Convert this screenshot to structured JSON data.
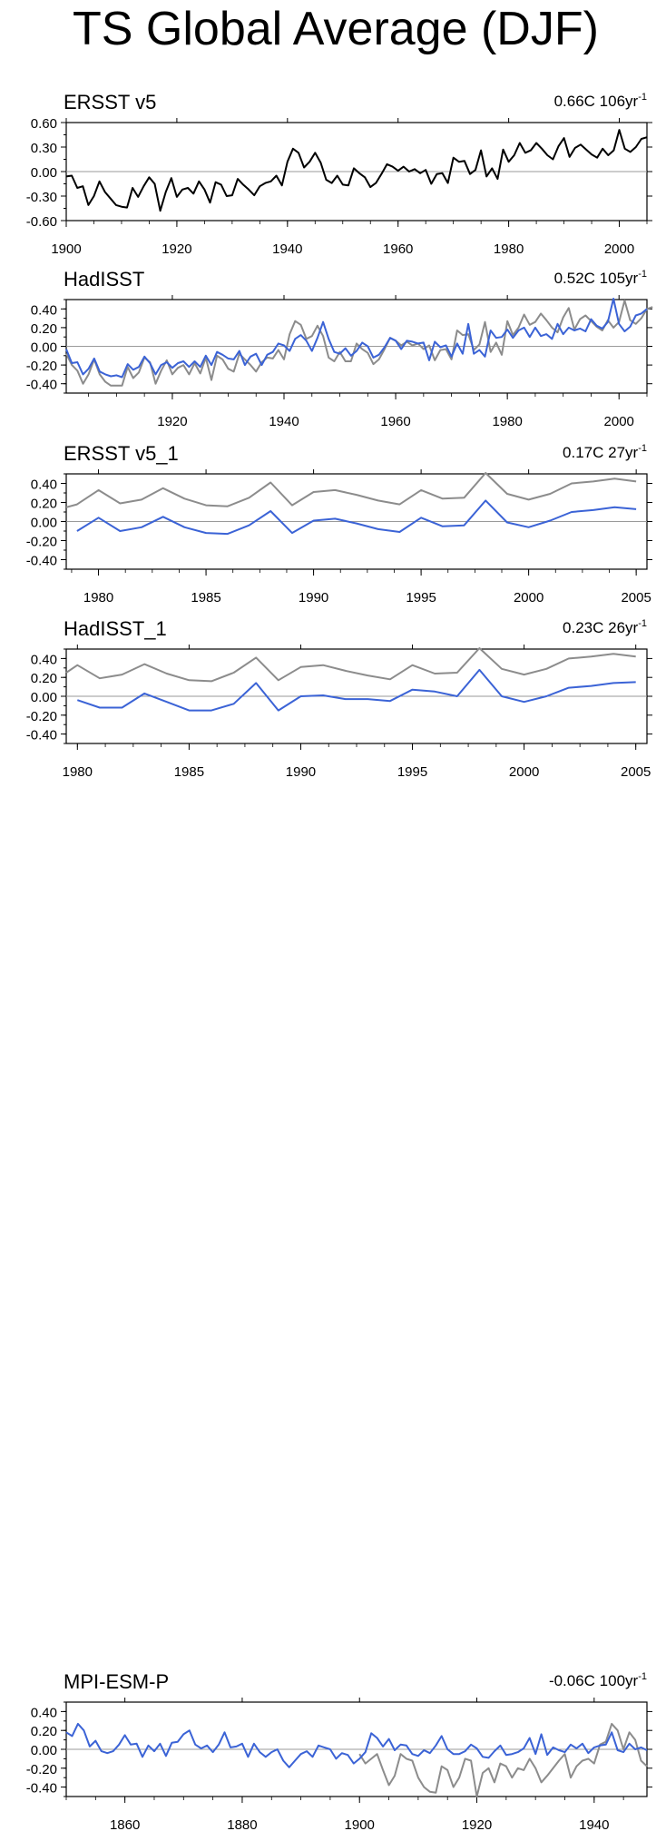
{
  "title": "TS Global Average (DJF)",
  "chart_data": [
    {
      "type": "line",
      "title": "ERSST v5",
      "trend_value": "0.66C 106yr",
      "trend_exp": "-1",
      "x_range": [
        1900,
        2005
      ],
      "ylim": [
        -0.6,
        0.6
      ],
      "y_ticks": [
        -0.6,
        -0.3,
        0.0,
        0.3,
        0.6
      ],
      "y_tick_labels": [
        "-0.60",
        "-0.30",
        "0.00",
        "0.30",
        "0.60"
      ],
      "x_ticks": [
        1900,
        1920,
        1940,
        1960,
        1980,
        2000
      ],
      "x_tick_labels": [
        "1900",
        "1920",
        "1940",
        "1960",
        "1980",
        "2000"
      ],
      "colors": {
        "series1": "#000000"
      },
      "series": [
        {
          "x_start": 1900,
          "values": [
            -0.06,
            -0.05,
            -0.2,
            -0.18,
            -0.41,
            -0.3,
            -0.12,
            -0.25,
            -0.33,
            -0.41,
            -0.43,
            -0.44,
            -0.2,
            -0.31,
            -0.18,
            -0.07,
            -0.15,
            -0.48,
            -0.25,
            -0.08,
            -0.31,
            -0.22,
            -0.2,
            -0.27,
            -0.12,
            -0.22,
            -0.38,
            -0.13,
            -0.16,
            -0.3,
            -0.29,
            -0.09,
            -0.16,
            -0.22,
            -0.29,
            -0.18,
            -0.14,
            -0.12,
            -0.05,
            -0.17,
            0.12,
            0.28,
            0.23,
            0.05,
            0.12,
            0.23,
            0.11,
            -0.1,
            -0.14,
            -0.05,
            -0.16,
            -0.17,
            0.04,
            -0.02,
            -0.07,
            -0.19,
            -0.14,
            -0.03,
            0.09,
            0.06,
            0.01,
            0.06,
            0.0,
            0.03,
            -0.02,
            0.02,
            -0.15,
            -0.03,
            -0.02,
            -0.14,
            0.17,
            0.12,
            0.13,
            -0.03,
            0.02,
            0.26,
            -0.06,
            0.04,
            -0.09,
            0.27,
            0.12,
            0.2,
            0.35,
            0.23,
            0.26,
            0.35,
            0.28,
            0.2,
            0.15,
            0.31,
            0.41,
            0.18,
            0.29,
            0.33,
            0.27,
            0.21,
            0.17,
            0.28,
            0.2,
            0.26,
            0.51,
            0.28,
            0.24,
            0.3,
            0.4,
            0.42
          ]
        }
      ]
    },
    {
      "type": "line",
      "title": "HadISST",
      "trend_value": "0.52C 105yr",
      "trend_exp": "-1",
      "x_range": [
        1901,
        2005
      ],
      "ylim": [
        -0.5,
        0.5
      ],
      "y_ticks": [
        -0.4,
        -0.2,
        0.0,
        0.2,
        0.4
      ],
      "y_tick_labels": [
        "-0.40",
        "-0.20",
        "0.00",
        "0.20",
        "0.40"
      ],
      "x_ticks": [
        1920,
        1940,
        1960,
        1980,
        2000
      ],
      "x_tick_labels": [
        "1920",
        "1940",
        "1960",
        "1980",
        "2000"
      ],
      "colors": {
        "series1": "#3b63d6",
        "series2": "#8c8c8c"
      },
      "series": [
        {
          "x_start": 1901,
          "values": [
            -0.03,
            -0.18,
            -0.17,
            -0.3,
            -0.24,
            -0.13,
            -0.27,
            -0.3,
            -0.32,
            -0.31,
            -0.33,
            -0.19,
            -0.25,
            -0.22,
            -0.11,
            -0.18,
            -0.3,
            -0.2,
            -0.17,
            -0.23,
            -0.18,
            -0.16,
            -0.22,
            -0.16,
            -0.22,
            -0.1,
            -0.2,
            -0.06,
            -0.09,
            -0.13,
            -0.14,
            -0.05,
            -0.2,
            -0.11,
            -0.08,
            -0.2,
            -0.09,
            -0.06,
            0.03,
            0.01,
            -0.05,
            0.08,
            0.12,
            0.06,
            -0.05,
            0.09,
            0.26,
            0.08,
            -0.06,
            -0.08,
            -0.02,
            -0.1,
            -0.05,
            0.04,
            0.0,
            -0.12,
            -0.09,
            -0.01,
            0.09,
            0.06,
            -0.03,
            0.06,
            0.05,
            0.03,
            0.04,
            -0.15,
            0.05,
            -0.01,
            0.01,
            -0.11,
            0.03,
            -0.08,
            0.24,
            -0.08,
            -0.04,
            -0.11,
            0.17,
            0.09,
            0.1,
            0.18,
            0.09,
            0.17,
            0.2,
            0.1,
            0.2,
            0.11,
            0.13,
            0.08,
            0.24,
            0.13,
            0.2,
            0.17,
            0.19,
            0.16,
            0.29,
            0.22,
            0.19,
            0.26,
            0.51,
            0.24,
            0.16,
            0.21,
            0.33,
            0.35,
            0.4
          ]
        },
        {
          "x_start": 1901,
          "values": [
            -0.08,
            -0.2,
            -0.26,
            -0.4,
            -0.3,
            -0.14,
            -0.3,
            -0.38,
            -0.42,
            -0.42,
            -0.42,
            -0.22,
            -0.34,
            -0.28,
            -0.12,
            -0.17,
            -0.4,
            -0.26,
            -0.15,
            -0.3,
            -0.23,
            -0.2,
            -0.3,
            -0.18,
            -0.29,
            -0.12,
            -0.36,
            -0.1,
            -0.14,
            -0.24,
            -0.27,
            -0.08,
            -0.14,
            -0.2,
            -0.27,
            -0.17,
            -0.12,
            -0.13,
            -0.04,
            -0.14,
            0.13,
            0.27,
            0.23,
            0.08,
            0.11,
            0.22,
            0.11,
            -0.12,
            -0.16,
            -0.06,
            -0.16,
            -0.16,
            0.03,
            -0.03,
            -0.07,
            -0.19,
            -0.14,
            -0.03,
            0.09,
            0.06,
            0.01,
            0.05,
            0.01,
            0.03,
            -0.03,
            0.01,
            -0.15,
            -0.04,
            -0.03,
            -0.14,
            0.17,
            0.12,
            0.13,
            -0.04,
            0.02,
            0.26,
            -0.06,
            0.04,
            -0.09,
            0.27,
            0.12,
            0.2,
            0.34,
            0.23,
            0.26,
            0.35,
            0.28,
            0.2,
            0.15,
            0.31,
            0.41,
            0.18,
            0.29,
            0.33,
            0.27,
            0.21,
            0.17,
            0.28,
            0.2,
            0.26,
            0.49,
            0.28,
            0.24,
            0.3,
            0.4,
            0.42
          ]
        }
      ]
    },
    {
      "type": "line",
      "title": "ERSST v5_1",
      "trend_value": "0.17C 27yr",
      "trend_exp": "-1",
      "x_range": [
        1978.5,
        2005.5
      ],
      "ylim": [
        -0.5,
        0.5
      ],
      "y_ticks": [
        -0.4,
        -0.2,
        0.0,
        0.2,
        0.4
      ],
      "y_tick_labels": [
        "-0.40",
        "-0.20",
        "0.00",
        "0.20",
        "0.40"
      ],
      "x_ticks": [
        1980,
        1985,
        1990,
        1995,
        2000,
        2005
      ],
      "x_tick_labels": [
        "1980",
        "1985",
        "1990",
        "1995",
        "2000",
        "2005"
      ],
      "colors": {
        "series1": "#3b63d6",
        "series2": "#8c8c8c"
      },
      "series": [
        {
          "x": [
            1979,
            1980,
            1981,
            1982,
            1983,
            1984,
            1985,
            1986,
            1987,
            1988,
            1989,
            1990,
            1991,
            1992,
            1993,
            1994,
            1995,
            1996,
            1997,
            1998,
            1999,
            2000,
            2001,
            2002,
            2003,
            2004,
            2005
          ],
          "values": [
            -0.1,
            0.04,
            -0.1,
            -0.06,
            0.05,
            -0.06,
            -0.12,
            -0.13,
            -0.04,
            0.11,
            -0.12,
            0.01,
            0.03,
            -0.02,
            -0.08,
            -0.11,
            0.04,
            -0.05,
            -0.04,
            0.22,
            -0.01,
            -0.06,
            0.01,
            0.1,
            0.12,
            0.15,
            0.13
          ]
        },
        {
          "x": [
            1978.5,
            1979,
            1980,
            1981,
            1982,
            1983,
            1984,
            1985,
            1986,
            1987,
            1988,
            1989,
            1990,
            1991,
            1992,
            1993,
            1994,
            1995,
            1996,
            1997,
            1998,
            1999,
            2000,
            2001,
            2002,
            2003,
            2004,
            2005
          ],
          "values": [
            0.15,
            0.18,
            0.33,
            0.19,
            0.23,
            0.35,
            0.24,
            0.17,
            0.16,
            0.25,
            0.41,
            0.17,
            0.31,
            0.33,
            0.28,
            0.22,
            0.18,
            0.33,
            0.24,
            0.25,
            0.51,
            0.29,
            0.23,
            0.29,
            0.4,
            0.42,
            0.45,
            0.42
          ]
        }
      ]
    },
    {
      "type": "line",
      "title": "HadISST_1",
      "trend_value": "0.23C 26yr",
      "trend_exp": "-1",
      "x_range": [
        1979.5,
        2005.5
      ],
      "ylim": [
        -0.5,
        0.5
      ],
      "y_ticks": [
        -0.4,
        -0.2,
        0.0,
        0.2,
        0.4
      ],
      "y_tick_labels": [
        "-0.40",
        "-0.20",
        "0.00",
        "0.20",
        "0.40"
      ],
      "x_ticks": [
        1980,
        1985,
        1990,
        1995,
        2000,
        2005
      ],
      "x_tick_labels": [
        "1980",
        "1985",
        "1990",
        "1995",
        "2000",
        "2005"
      ],
      "colors": {
        "series1": "#3b63d6",
        "series2": "#8c8c8c"
      },
      "series": [
        {
          "x": [
            1980,
            1981,
            1982,
            1983,
            1984,
            1985,
            1986,
            1987,
            1988,
            1989,
            1990,
            1991,
            1992,
            1993,
            1994,
            1995,
            1996,
            1997,
            1998,
            1999,
            2000,
            2001,
            2002,
            2003,
            2004,
            2005
          ],
          "values": [
            -0.04,
            -0.12,
            -0.12,
            0.03,
            -0.06,
            -0.15,
            -0.15,
            -0.08,
            0.14,
            -0.15,
            0.0,
            0.01,
            -0.03,
            -0.03,
            -0.05,
            0.07,
            0.05,
            0.0,
            0.28,
            0.0,
            -0.06,
            0.0,
            0.09,
            0.11,
            0.14,
            0.15
          ]
        },
        {
          "x": [
            1979.5,
            1980,
            1981,
            1982,
            1983,
            1984,
            1985,
            1986,
            1987,
            1988,
            1989,
            1990,
            1991,
            1992,
            1993,
            1994,
            1995,
            1996,
            1997,
            1998,
            1999,
            2000,
            2001,
            2002,
            2003,
            2004,
            2005
          ],
          "values": [
            0.25,
            0.33,
            0.19,
            0.23,
            0.34,
            0.24,
            0.17,
            0.16,
            0.25,
            0.41,
            0.17,
            0.31,
            0.33,
            0.27,
            0.22,
            0.18,
            0.33,
            0.24,
            0.25,
            0.51,
            0.29,
            0.23,
            0.29,
            0.4,
            0.42,
            0.45,
            0.42
          ]
        }
      ]
    },
    {
      "type": "line",
      "title": "MPI-ESM-P",
      "trend_value": "-0.06C 100yr",
      "trend_exp": "-1",
      "x_range": [
        1850,
        1949
      ],
      "ylim": [
        -0.5,
        0.5
      ],
      "y_ticks": [
        -0.4,
        -0.2,
        0.0,
        0.2,
        0.4
      ],
      "y_tick_labels": [
        "-0.40",
        "-0.20",
        "0.00",
        "0.20",
        "0.40"
      ],
      "x_ticks": [
        1860,
        1880,
        1900,
        1920,
        1940
      ],
      "x_tick_labels": [
        "1860",
        "1880",
        "1900",
        "1920",
        "1940"
      ],
      "colors": {
        "series1": "#3b63d6",
        "series2": "#8c8c8c"
      },
      "series": [
        {
          "x_start": 1850,
          "values": [
            0.18,
            0.14,
            0.27,
            0.2,
            0.03,
            0.09,
            -0.02,
            -0.04,
            -0.02,
            0.05,
            0.15,
            0.05,
            0.06,
            -0.08,
            0.04,
            -0.02,
            0.06,
            -0.07,
            0.07,
            0.08,
            0.16,
            0.2,
            0.05,
            0.01,
            0.04,
            -0.03,
            0.05,
            0.18,
            0.02,
            0.03,
            0.06,
            -0.08,
            0.06,
            -0.03,
            -0.08,
            -0.03,
            0.0,
            -0.12,
            -0.19,
            -0.12,
            -0.05,
            -0.02,
            -0.08,
            0.04,
            0.02,
            0.0,
            -0.1,
            -0.04,
            -0.06,
            -0.15,
            -0.1,
            -0.03,
            0.17,
            0.12,
            0.03,
            0.11,
            -0.01,
            0.05,
            0.04,
            -0.05,
            -0.07,
            -0.01,
            -0.04,
            0.04,
            0.14,
            0.0,
            -0.05,
            -0.05,
            -0.02,
            0.05,
            0.01,
            -0.08,
            -0.09,
            -0.02,
            0.04,
            -0.06,
            -0.05,
            -0.03,
            0.01,
            0.12,
            -0.05,
            0.16,
            -0.06,
            0.02,
            -0.01,
            -0.03,
            0.05,
            0.01,
            0.06,
            -0.04,
            0.02,
            0.04,
            0.05,
            0.18,
            -0.01,
            -0.03,
            0.06,
            0.0,
            0.02,
            -0.01
          ]
        },
        {
          "x_start": 1900,
          "values": [
            -0.05,
            -0.15,
            -0.1,
            -0.05,
            -0.22,
            -0.38,
            -0.28,
            -0.05,
            -0.1,
            -0.12,
            -0.3,
            -0.4,
            -0.45,
            -0.46,
            -0.18,
            -0.22,
            -0.4,
            -0.3,
            -0.1,
            -0.12,
            -0.5,
            -0.25,
            -0.2,
            -0.35,
            -0.15,
            -0.18,
            -0.3,
            -0.2,
            -0.22,
            -0.1,
            -0.2,
            -0.35,
            -0.28,
            -0.2,
            -0.12,
            -0.05,
            -0.3,
            -0.18,
            -0.12,
            -0.1,
            -0.15,
            0.05,
            0.08,
            0.27,
            0.2,
            0.0,
            0.18,
            0.1,
            -0.12,
            -0.18
          ]
        }
      ]
    }
  ]
}
